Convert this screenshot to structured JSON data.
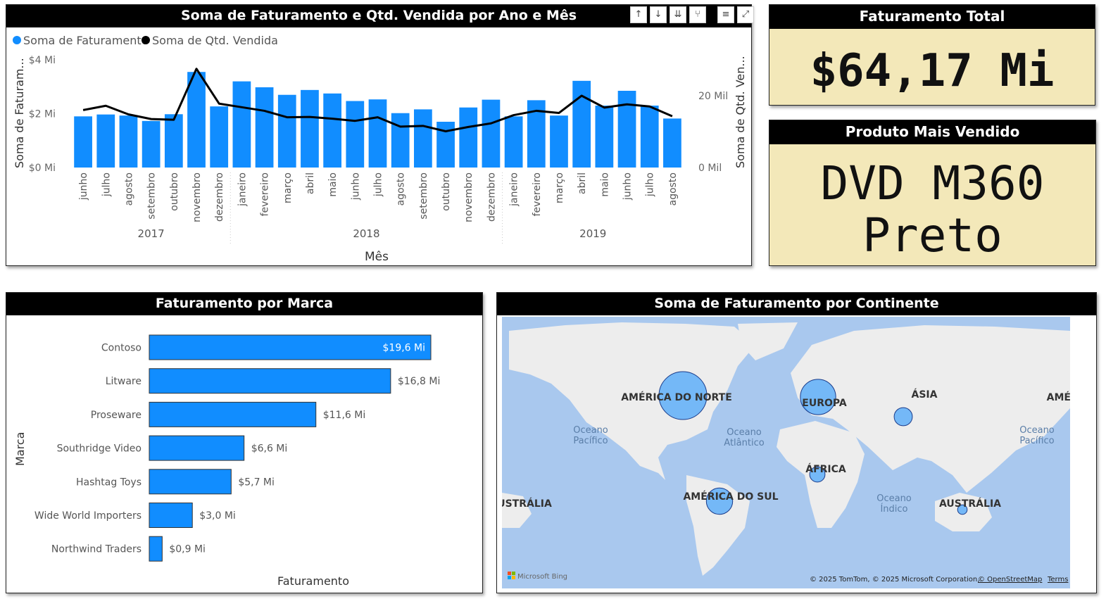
{
  "colors": {
    "accent": "#118dff",
    "line": "#000000",
    "card_bg": "#f3e8b9",
    "map_bg": "#a9c8ee",
    "land": "#ededed"
  },
  "combo": {
    "title": "Soma de Faturamento e Qtd. Vendida por Ano e Mês",
    "legend": [
      "Soma de Faturamento",
      "Soma de Qtd. Vendida"
    ],
    "ylabel_left": "Soma de Faturam...",
    "ylabel_right": "Soma de Qtd. Ven...",
    "xlabel": "Mês",
    "left_ticks": [
      "$0 Mi",
      "$2 Mi",
      "$4 Mi"
    ],
    "right_ticks": [
      "0 Mil",
      "20 Mil"
    ],
    "toolbar_icons": [
      "arrow-up-icon",
      "arrow-down-icon",
      "double-arrow-down-icon",
      "fork-icon",
      "filter-icon",
      "expand-icon"
    ]
  },
  "chart_data": [
    {
      "type": "bar",
      "title": "Soma de Faturamento e Qtd. Vendida por Ano e Mês",
      "xlabel": "Mês",
      "ylabel": "Soma de Faturam...",
      "ylabel_right": "Soma de Qtd. Ven...",
      "ylim": [
        0,
        4.0
      ],
      "ylim_right": [
        0,
        30
      ],
      "years": [
        {
          "label": "2017",
          "count": 7
        },
        {
          "label": "2018",
          "count": 12
        },
        {
          "label": "2019",
          "count": 8
        }
      ],
      "categories": [
        "junho",
        "julho",
        "agosto",
        "setembro",
        "outubro",
        "novembro",
        "dezembro",
        "janeiro",
        "fevereiro",
        "março",
        "abril",
        "maio",
        "junho",
        "julho",
        "agosto",
        "setembro",
        "outubro",
        "novembro",
        "dezembro",
        "janeiro",
        "fevereiro",
        "março",
        "abril",
        "maio",
        "junho",
        "julho",
        "agosto"
      ],
      "series": [
        {
          "name": "Soma de Faturamento",
          "type": "bar",
          "values": [
            1.9,
            1.97,
            1.93,
            1.73,
            1.98,
            3.55,
            2.27,
            3.2,
            2.98,
            2.7,
            2.88,
            2.75,
            2.47,
            2.53,
            2.02,
            2.16,
            1.7,
            2.23,
            2.52,
            1.9,
            2.5,
            1.93,
            3.22,
            2.3,
            2.85,
            2.3,
            1.82
          ]
        },
        {
          "name": "Soma de Qtd. Vendida",
          "type": "line",
          "values": [
            16.0,
            17.2,
            14.8,
            13.5,
            13.3,
            27.5,
            17.8,
            16.8,
            15.8,
            14.0,
            14.1,
            13.6,
            13.0,
            14.0,
            11.4,
            11.6,
            10.1,
            11.3,
            12.3,
            14.6,
            15.8,
            15.2,
            20.0,
            16.7,
            17.6,
            17.0,
            14.3
          ]
        }
      ]
    },
    {
      "type": "bar",
      "title": "Faturamento por Marca",
      "xlabel": "Faturamento",
      "ylabel": "Marca",
      "categories": [
        "Contoso",
        "Litware",
        "Proseware",
        "Southridge Video",
        "Hashtag Toys",
        "Wide World Importers",
        "Northwind Traders"
      ],
      "values": [
        19.6,
        16.8,
        11.6,
        6.6,
        5.7,
        3.0,
        0.9
      ],
      "data_labels": [
        "$19,6 Mi",
        "$16,8 Mi",
        "$11,6 Mi",
        "$6,6 Mi",
        "$5,7 Mi",
        "$3,0 Mi",
        "$0,9 Mi"
      ]
    }
  ],
  "cards": {
    "total_title": "Faturamento Total",
    "total_value": "$64,17 Mi",
    "product_title": "Produto Mais Vendido",
    "product_line1": "DVD M360",
    "product_line2": "Preto"
  },
  "brand": {
    "title": "Faturamento por Marca",
    "ylabel": "Marca",
    "xlabel": "Faturamento"
  },
  "map": {
    "title": "Soma de Faturamento por Continente",
    "continents": [
      "AMÉRICA DO NORTE",
      "EUROPA",
      "ÁSIA",
      "ÁFRICA",
      "AMÉRICA DO SUL",
      "AUSTRÁLIA",
      "USTRÁLIA",
      "AMÉ"
    ],
    "oceans": [
      [
        "Oceano",
        "Pacífico"
      ],
      [
        "Oceano",
        "Atlântico"
      ],
      [
        "Oceano",
        "Pacífico"
      ],
      [
        "Oceano",
        "Índico"
      ]
    ],
    "bubble_order": [
      "AMÉRICA DO NORTE",
      "EUROPA",
      "ÁSIA",
      "ÁFRICA",
      "AMÉRICA DO SUL",
      "AUSTRÁLIA"
    ],
    "bubble_relative_size": [
      1.0,
      0.74,
      0.38,
      0.32,
      0.55,
      0.2
    ],
    "bing_logo": "Microsoft Bing",
    "copyright": "© 2025 TomTom, © 2025 Microsoft Corporation,",
    "osm_link": "© OpenStreetMap",
    "terms_link": "Terms"
  }
}
